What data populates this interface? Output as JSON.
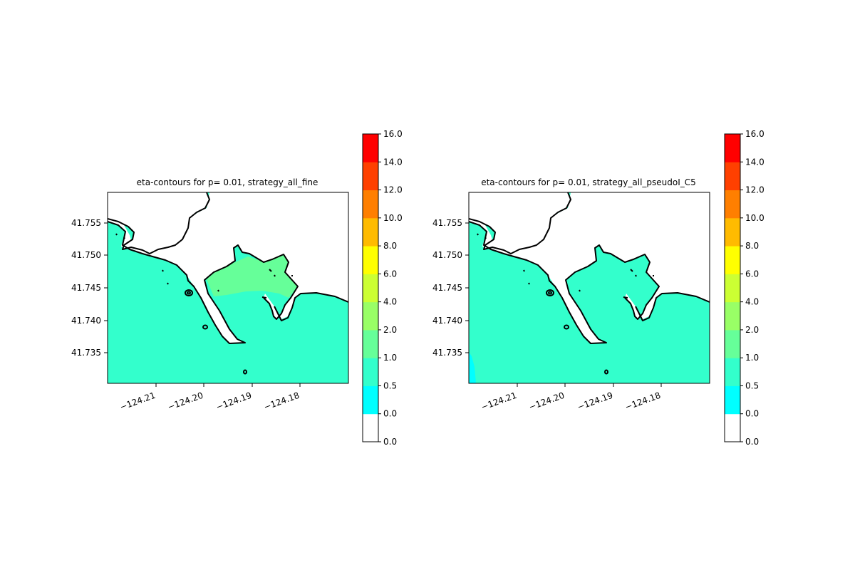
{
  "chart_data": [
    {
      "type": "heatmap",
      "title": "eta-contours for p= 0.01, strategy_all_fine",
      "xlabel": "",
      "ylabel": "",
      "xlim": [
        -124.219,
        -124.169
      ],
      "ylim": [
        41.7303,
        41.7597
      ],
      "xticks": [
        -124.21,
        -124.2,
        -124.19,
        -124.18
      ],
      "xtick_labels": [
        "−124.21",
        "−124.20",
        "−124.19",
        "−124.18"
      ],
      "yticks": [
        41.735,
        41.74,
        41.745,
        41.75,
        41.755
      ],
      "ytick_labels": [
        "41.735",
        "41.740",
        "41.745",
        "41.750",
        "41.755"
      ],
      "dominant_level_range": [
        0.5,
        1.0
      ],
      "harbor_level_range": [
        1.0,
        2.0
      ],
      "grid": false
    },
    {
      "type": "heatmap",
      "title": "eta-contours for p= 0.01, strategy_all_pseudoI_C5",
      "xlabel": "",
      "ylabel": "",
      "xlim": [
        -124.219,
        -124.169
      ],
      "ylim": [
        41.7303,
        41.7597
      ],
      "xticks": [
        -124.21,
        -124.2,
        -124.19,
        -124.18
      ],
      "xtick_labels": [
        "−124.21",
        "−124.20",
        "−124.19",
        "−124.18"
      ],
      "yticks": [
        41.735,
        41.74,
        41.745,
        41.75,
        41.755
      ],
      "ytick_labels": [
        "41.735",
        "41.740",
        "41.745",
        "41.750",
        "41.755"
      ],
      "dominant_level_range": [
        0.5,
        1.0
      ],
      "grid": false
    }
  ],
  "colorbar": {
    "levels": [
      {
        "from": 0.0,
        "to": 0.0,
        "color": "#ffffff"
      },
      {
        "from": 0.0,
        "to": 0.5,
        "color": "#00ffff"
      },
      {
        "from": 0.5,
        "to": 1.0,
        "color": "#33ffcc"
      },
      {
        "from": 1.0,
        "to": 2.0,
        "color": "#66ff99"
      },
      {
        "from": 2.0,
        "to": 4.0,
        "color": "#99ff66"
      },
      {
        "from": 4.0,
        "to": 6.0,
        "color": "#ccff33"
      },
      {
        "from": 6.0,
        "to": 8.0,
        "color": "#ffff00"
      },
      {
        "from": 8.0,
        "to": 10.0,
        "color": "#ffbb00"
      },
      {
        "from": 10.0,
        "to": 12.0,
        "color": "#ff7f00"
      },
      {
        "from": 12.0,
        "to": 14.0,
        "color": "#ff4000"
      },
      {
        "from": 14.0,
        "to": 16.0,
        "color": "#ff0000"
      }
    ],
    "tick_labels": [
      "0.0",
      "0.0",
      "0.5",
      "1.0",
      "2.0",
      "4.0",
      "6.0",
      "8.0",
      "10.0",
      "12.0",
      "14.0",
      "16.0"
    ]
  },
  "colors": {
    "land": "#ffffff",
    "coastline": "#000000"
  }
}
